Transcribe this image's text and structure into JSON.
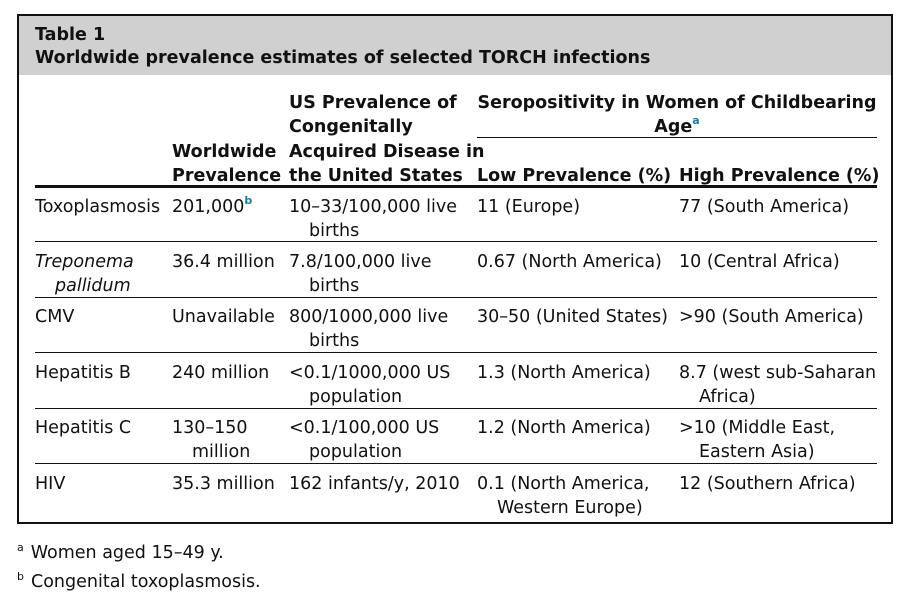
{
  "caption": {
    "label": "Table 1",
    "title": "Worldwide prevalence estimates of selected TORCH infections"
  },
  "headers": {
    "worldwide": [
      "Worldwide",
      "Prevalence"
    ],
    "us": [
      "US Prevalence of",
      "Congenitally",
      "Acquired Disease in",
      "the United States"
    ],
    "sero_group": "Seropositivity in Women of Childbearing",
    "sero_group_line2": "Age",
    "sero_group_mark": "a",
    "low": "Low Prevalence (%)",
    "high": "High Prevalence (%)"
  },
  "rows": [
    {
      "name": [
        "Toxoplasmosis"
      ],
      "worldwide": [
        "201,000"
      ],
      "worldwide_mark": "b",
      "us": [
        "10–33/100,000 live",
        "births"
      ],
      "low": [
        "11 (Europe)"
      ],
      "high": [
        "77 (South America)"
      ]
    },
    {
      "name": [
        "Treponema",
        "pallidum"
      ],
      "italic": true,
      "worldwide": [
        "36.4 million"
      ],
      "us": [
        "7.8/100,000 live",
        "births"
      ],
      "low": [
        "0.67 (North America)"
      ],
      "high": [
        "10 (Central Africa)"
      ]
    },
    {
      "name": [
        "CMV"
      ],
      "worldwide": [
        "Unavailable"
      ],
      "us": [
        "800/1000,000 live",
        "births"
      ],
      "low": [
        "30–50 (United States)"
      ],
      "high": [
        ">90 (South America)"
      ]
    },
    {
      "name": [
        "Hepatitis B"
      ],
      "worldwide": [
        "240 million"
      ],
      "us": [
        "<0.1/1000,000 US",
        "population"
      ],
      "low": [
        "1.3 (North America)"
      ],
      "high": [
        "8.7 (west sub-Saharan",
        "Africa)"
      ]
    },
    {
      "name": [
        "Hepatitis C"
      ],
      "worldwide": [
        "130–150",
        "million"
      ],
      "us": [
        "<0.1/100,000 US",
        "population"
      ],
      "low": [
        "1.2 (North America)"
      ],
      "high": [
        ">10 (Middle East,",
        "Eastern Asia)"
      ]
    },
    {
      "name": [
        "HIV"
      ],
      "worldwide": [
        "35.3 million"
      ],
      "us": [
        "162 infants/y, 2010"
      ],
      "low": [
        "0.1 (North America,",
        "Western Europe)"
      ],
      "high": [
        "12 (Southern Africa)"
      ]
    }
  ],
  "footnotes": [
    {
      "mark": "a",
      "text": "Women aged 15–49 y."
    },
    {
      "mark": "b",
      "text": "Congenital toxoplasmosis."
    }
  ]
}
